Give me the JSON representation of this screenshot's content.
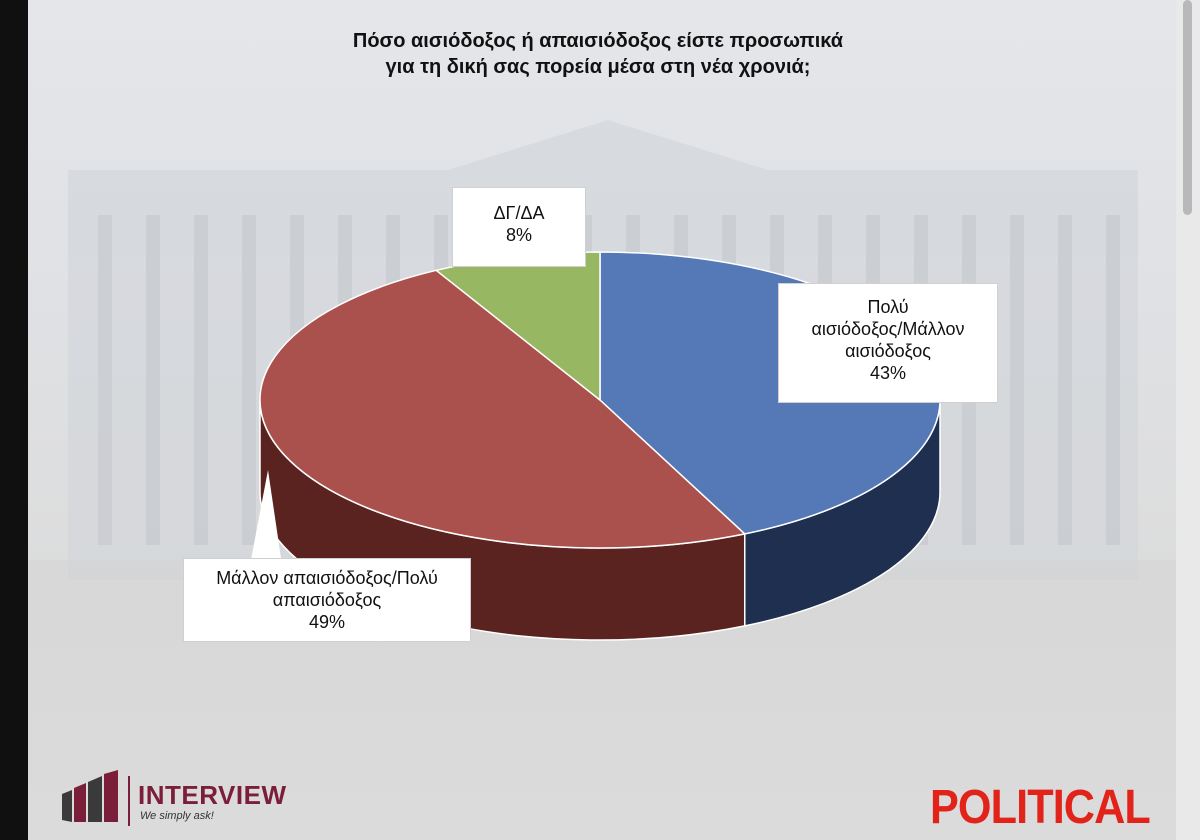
{
  "title_lines": [
    "Πόσο αισιόδοξος ή απαισιόδοξος είστε προσωπικά",
    "για τη δική σας πορεία μέσα στη νέα χρονιά;"
  ],
  "chart_data": {
    "type": "pie",
    "title": "Πόσο αισιόδοξος ή απαισιόδοξος είστε προσωπικά για τη δική σας πορεία μέσα στη νέα χρονιά;",
    "unit": "%",
    "slices": [
      {
        "label": "Πολύ αισιόδοξος/Μάλλον αισιόδοξος",
        "value": 43,
        "color": "#5479b6",
        "side_color": "#1f2f50"
      },
      {
        "label": "Μάλλον απαισιόδοξος/Πολύ απαισιόδοξος",
        "value": 49,
        "color": "#ab514d",
        "side_color": "#5a2320"
      },
      {
        "label": "ΔΓ/ΔΑ",
        "value": 8,
        "color": "#98b763",
        "side_color": "#5d7436"
      }
    ],
    "data_labels": [
      {
        "lines": [
          "Πολύ",
          "αισιόδοξος/Μάλλον",
          "αισιόδοξος"
        ],
        "value_text": "43%"
      },
      {
        "lines": [
          "Μάλλον απαισιόδοξος/Πολύ",
          "απαισιόδοξος"
        ],
        "value_text": "49%"
      },
      {
        "lines": [
          "ΔΓ/ΔΑ"
        ],
        "value_text": "8%"
      }
    ]
  },
  "logos": {
    "interview_name": "INTERVIEW",
    "interview_tagline": "We simply ask!",
    "political": "POLITICAL"
  },
  "colors": {
    "logo_maroon": "#7b1e3a",
    "political_red": "#e2231a"
  }
}
